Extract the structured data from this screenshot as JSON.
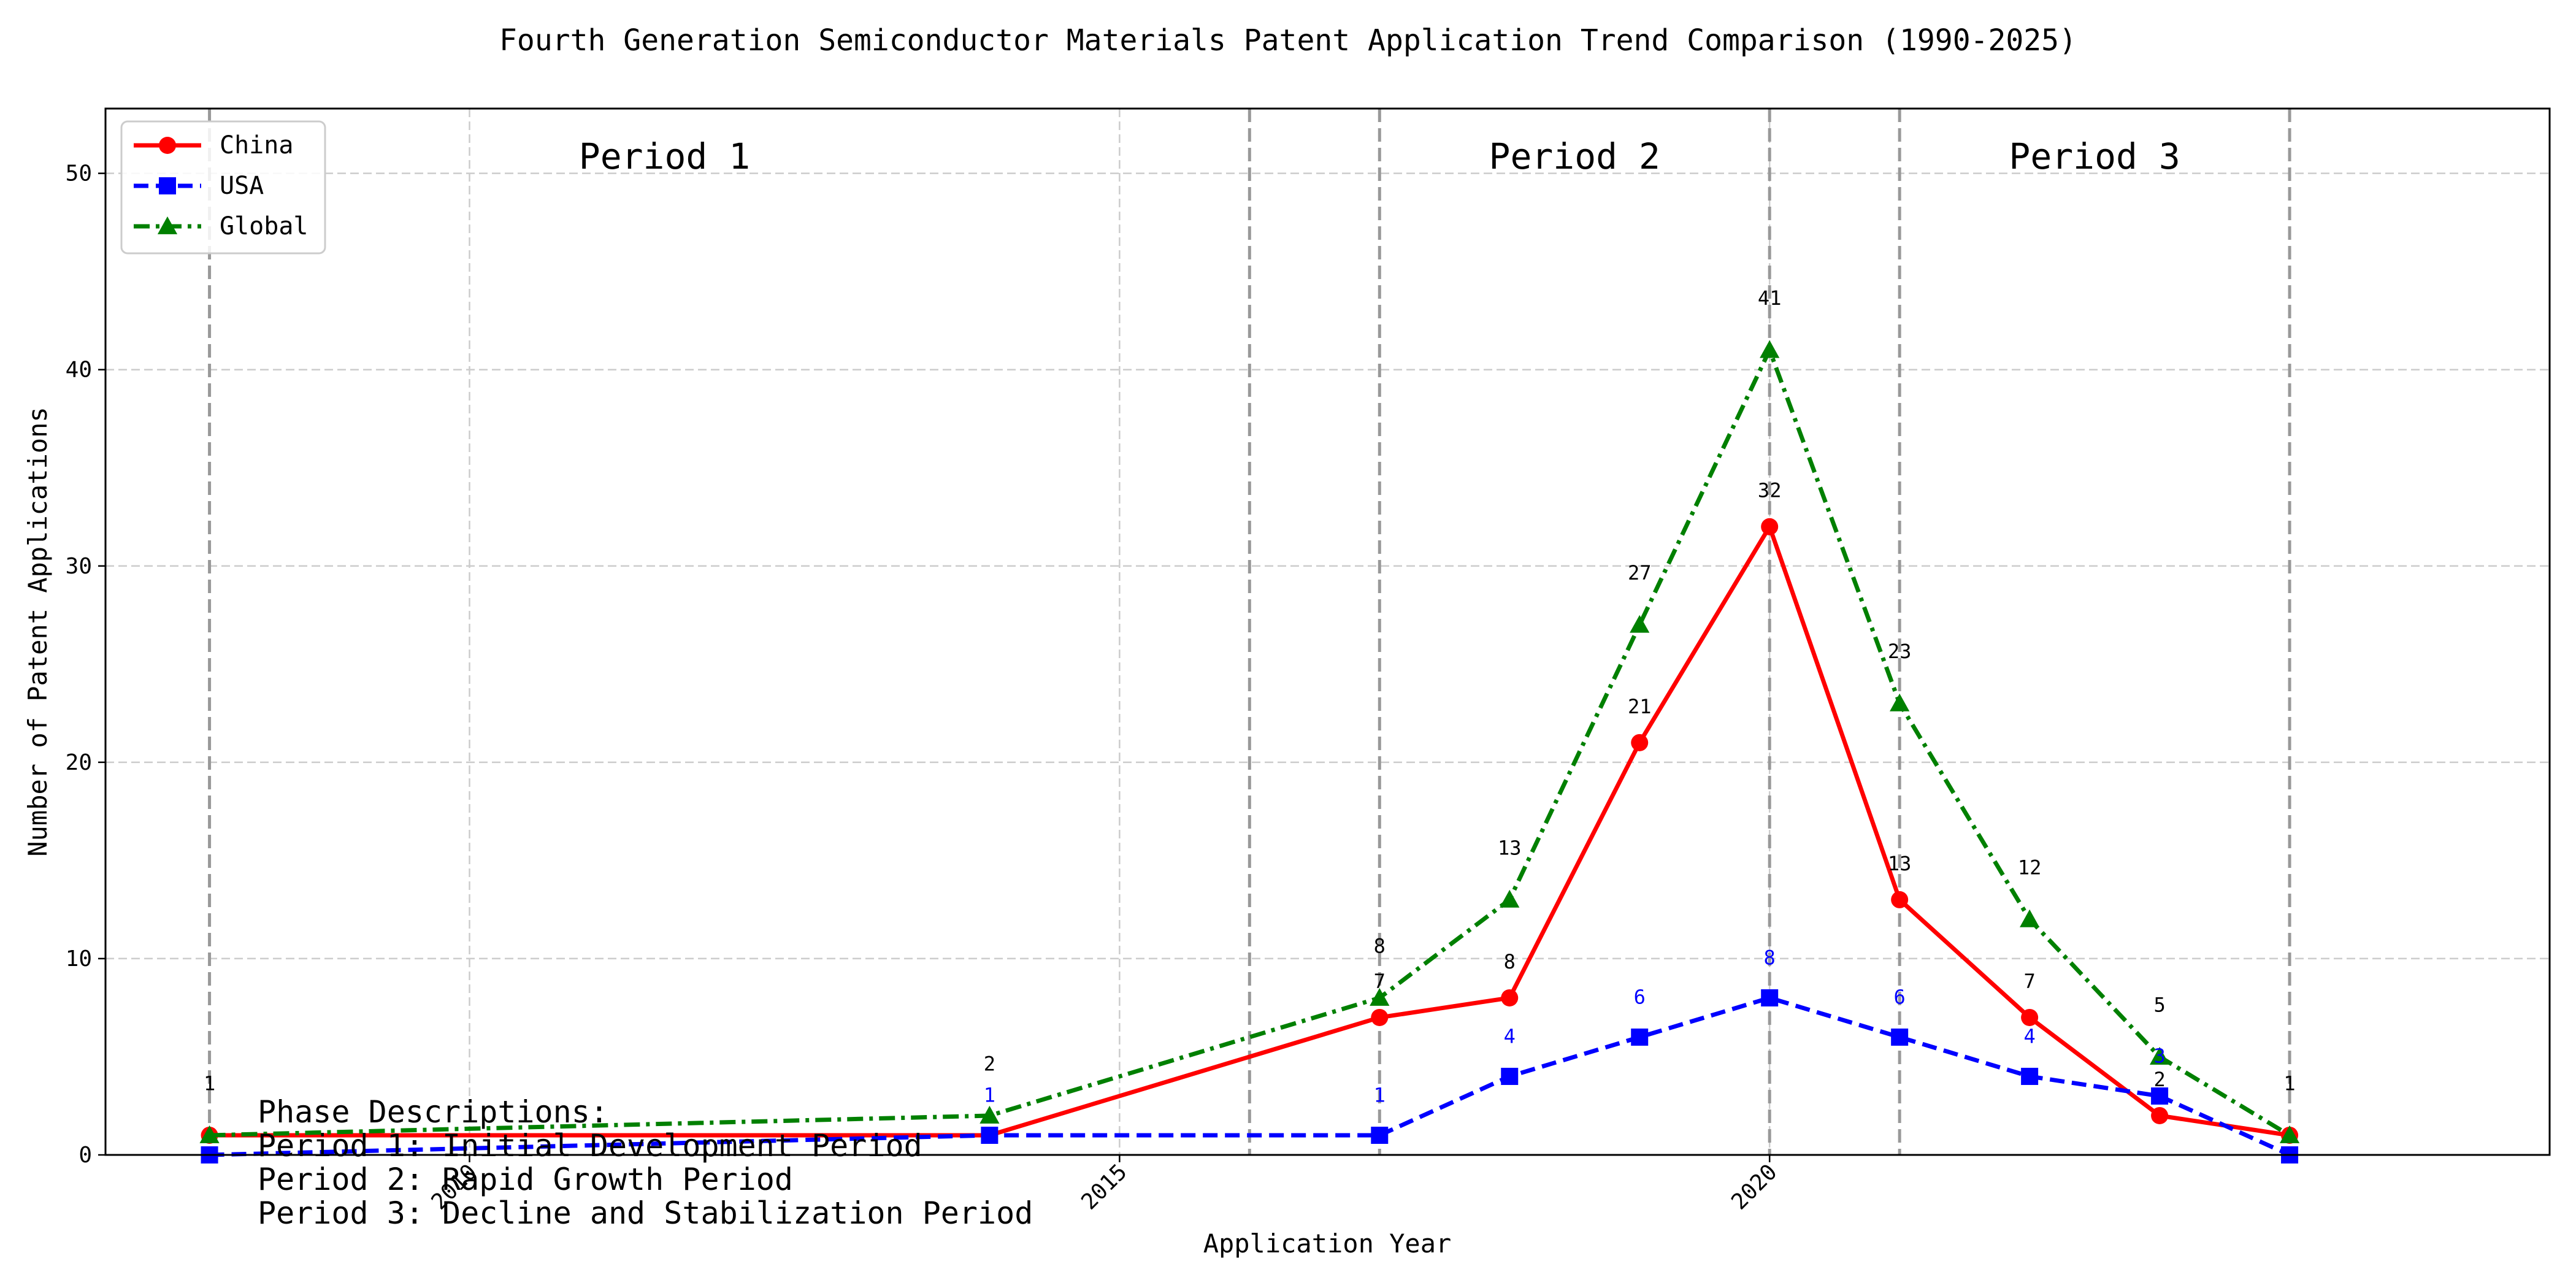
{
  "chart_data": {
    "type": "line",
    "title": "Fourth Generation Semiconductor Materials Patent Application Trend Comparison (1990-2025)",
    "xlabel": "Application Year",
    "ylabel": "Number of Patent Applications",
    "xlim": [
      2007.2,
      2026.0
    ],
    "ylim": [
      0,
      53.3
    ],
    "grid": true,
    "legend_position": "top-left",
    "x_ticks": [
      2010,
      2015,
      2020
    ],
    "y_ticks": [
      0,
      10,
      20,
      30,
      40,
      50
    ],
    "x": [
      2008,
      2014,
      2017,
      2018,
      2019,
      2020,
      2021,
      2022,
      2023,
      2024
    ],
    "series": [
      {
        "name": "China",
        "color": "#ff0000",
        "marker": "circle",
        "dash": "solid",
        "label_color": "#000000",
        "label_offset": -1.5,
        "values": [
          1,
          1,
          7,
          8,
          21,
          32,
          13,
          7,
          2,
          1
        ]
      },
      {
        "name": "USA",
        "color": "#0000ff",
        "marker": "square",
        "dash": "dashed",
        "label_color": "#0000ff",
        "label_offset": -1.7,
        "values": [
          0,
          1,
          1,
          4,
          6,
          8,
          6,
          4,
          3,
          0
        ]
      },
      {
        "name": "Global",
        "color": "#008000",
        "marker": "triangle",
        "dash": "dashdot",
        "label_color": "#000000",
        "label_offset": -2.3,
        "values": [
          1,
          2,
          8,
          13,
          27,
          41,
          23,
          12,
          5,
          1
        ]
      }
    ],
    "data_labels": {
      "China": [
        "",
        "",
        "7",
        "8",
        "21",
        "32",
        "13",
        "7",
        "2",
        ""
      ],
      "USA": [
        "",
        "1",
        "1",
        "4",
        "6",
        "8",
        "6",
        "4",
        "3",
        ""
      ],
      "Global": [
        "1",
        "2",
        "8",
        "13",
        "27",
        "41",
        "23",
        "12",
        "5",
        "1"
      ]
    },
    "phase_lines_x": [
      2008,
      2017,
      2020,
      2021,
      2024
    ],
    "extra_vline_x": 2016,
    "periods": [
      {
        "label": "Period 1",
        "x": 2011.5
      },
      {
        "label": "Period 2",
        "x": 2018.5
      },
      {
        "label": "Period 3",
        "x": 2022.5
      }
    ],
    "phase_descriptions": {
      "heading": "Phase Descriptions:",
      "lines": [
        "Period 1: Initial Development Period",
        "Period 2: Rapid Growth Period",
        "Period 3: Decline and Stabilization Period"
      ]
    }
  }
}
